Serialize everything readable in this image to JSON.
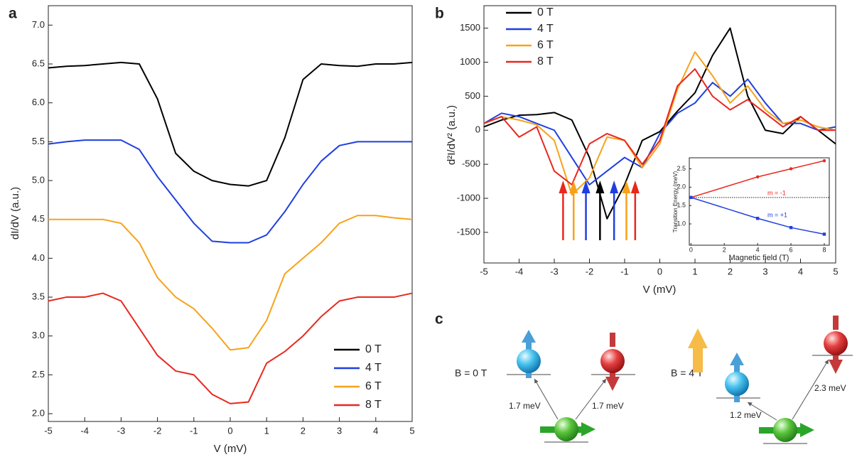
{
  "chart_data": [
    {
      "type": "line",
      "label": "a",
      "x_label": "V (mV)",
      "y_label": "dI/dV (a.u.)",
      "x": [
        -5,
        -4.5,
        -4,
        -3.5,
        -3,
        -2.5,
        -2,
        -1.5,
        -1,
        -0.5,
        0,
        0.5,
        1,
        1.5,
        2,
        2.5,
        3,
        3.5,
        4,
        4.5,
        5
      ],
      "series": [
        {
          "name": "0 T",
          "color": "#000000",
          "values": [
            6.45,
            6.47,
            6.48,
            6.5,
            6.52,
            6.5,
            6.05,
            5.35,
            5.12,
            5.0,
            4.95,
            4.93,
            5.0,
            5.55,
            6.3,
            6.5,
            6.48,
            6.47,
            6.5,
            6.5,
            6.52
          ]
        },
        {
          "name": "4 T",
          "color": "#1f3fe0",
          "values": [
            5.47,
            5.5,
            5.52,
            5.52,
            5.52,
            5.4,
            5.05,
            4.75,
            4.45,
            4.22,
            4.2,
            4.2,
            4.3,
            4.6,
            4.95,
            5.25,
            5.45,
            5.5,
            5.5,
            5.5,
            5.5
          ]
        },
        {
          "name": "6 T",
          "color": "#f7a21b",
          "values": [
            4.5,
            4.5,
            4.5,
            4.5,
            4.45,
            4.2,
            3.75,
            3.5,
            3.35,
            3.1,
            2.82,
            2.85,
            3.2,
            3.8,
            4.0,
            4.2,
            4.45,
            4.55,
            4.55,
            4.52,
            4.5
          ]
        },
        {
          "name": "8 T",
          "color": "#e8281e",
          "values": [
            3.45,
            3.5,
            3.5,
            3.55,
            3.45,
            3.1,
            2.75,
            2.55,
            2.5,
            2.25,
            2.13,
            2.15,
            2.65,
            2.8,
            3.0,
            3.25,
            3.45,
            3.5,
            3.5,
            3.5,
            3.55
          ]
        }
      ],
      "xlim": [
        -5,
        5
      ],
      "xticks": [
        -5,
        -4,
        -3,
        -2,
        -1,
        0,
        1,
        2,
        3,
        4,
        5
      ],
      "ylim": [
        1.9,
        7.25
      ],
      "yticks": [
        {
          "value": 2,
          "label": "2.0"
        },
        2.5,
        {
          "value": 3,
          "label": "3.0"
        },
        3.5,
        {
          "value": 4,
          "label": "4.0"
        },
        4.5,
        {
          "value": 5,
          "label": "5.0"
        },
        5.5,
        {
          "value": 6,
          "label": "6.0"
        },
        6.5,
        {
          "value": 7,
          "label": "7.0"
        }
      ],
      "legend": "lower right"
    },
    {
      "type": "line",
      "label": "b",
      "x_label": "V (mV)",
      "y_label": "d²I/dV² (a.u.)",
      "x": [
        -5,
        -4.5,
        -4,
        -3.5,
        -3,
        -2.5,
        -2,
        -1.5,
        -1,
        -0.5,
        0,
        0.5,
        1,
        1.5,
        2,
        2.5,
        3,
        3.5,
        4,
        4.5,
        5
      ],
      "series": [
        {
          "name": "0 T",
          "color": "#000000",
          "values": [
            50,
            150,
            220,
            230,
            260,
            150,
            -400,
            -1300,
            -800,
            -150,
            -20,
            280,
            550,
            1100,
            1500,
            500,
            0,
            -50,
            200,
            0,
            -200
          ]
        },
        {
          "name": "4 T",
          "color": "#1f3fe0",
          "values": [
            100,
            250,
            200,
            100,
            0,
            -400,
            -800,
            -600,
            -400,
            -550,
            -50,
            250,
            400,
            700,
            500,
            750,
            400,
            100,
            100,
            0,
            50
          ]
        },
        {
          "name": "6 T",
          "color": "#f7a21b",
          "values": [
            100,
            200,
            150,
            80,
            -150,
            -950,
            -700,
            -100,
            -150,
            -550,
            -200,
            600,
            1150,
            800,
            400,
            650,
            300,
            100,
            150,
            50,
            0
          ]
        },
        {
          "name": "8 T",
          "color": "#e8281e",
          "values": [
            100,
            200,
            -100,
            50,
            -600,
            -800,
            -200,
            -50,
            -150,
            -500,
            -150,
            650,
            900,
            500,
            300,
            450,
            250,
            50,
            200,
            0,
            0
          ]
        }
      ],
      "arrows": [
        {
          "x": -2.75,
          "color": "#e8281e"
        },
        {
          "x": -2.45,
          "color": "#f7a21b"
        },
        {
          "x": -2.1,
          "color": "#1f3fe0"
        },
        {
          "x": -1.7,
          "color": "#000000"
        },
        {
          "x": -1.3,
          "color": "#1f3fe0"
        },
        {
          "x": -0.95,
          "color": "#f7a21b"
        },
        {
          "x": -0.7,
          "color": "#e8281e"
        }
      ],
      "xlim": [
        -5,
        5
      ],
      "xticks": [
        -5,
        -4,
        -3,
        -2,
        -1,
        0,
        1,
        2,
        3,
        4,
        5
      ],
      "ylim": [
        -1950,
        1830
      ],
      "yticks": [
        -1500,
        -1000,
        -500,
        0,
        500,
        1000,
        1500
      ],
      "legend": "upper left"
    },
    {
      "type": "line",
      "x_label": "Magnetic field (T)",
      "y_label": "Transition Energy (meV)",
      "x": [
        0,
        4,
        6,
        8
      ],
      "series": [
        {
          "name": "m = -1",
          "color": "#e8281e",
          "values": [
            1.72,
            2.28,
            2.5,
            2.72
          ]
        },
        {
          "name": "m = +1",
          "color": "#1f3fe0",
          "values": [
            1.72,
            1.15,
            0.9,
            0.72
          ]
        }
      ],
      "hline": 1.72,
      "xlim": [
        -0.1,
        8.3
      ],
      "xticks": [
        0,
        2,
        4,
        6,
        8
      ],
      "ylim": [
        0.42,
        2.8
      ],
      "yticks": [
        {
          "value": 1,
          "label": "1.0"
        },
        1.5,
        {
          "value": 2,
          "label": "2.0"
        },
        2.5
      ]
    }
  ],
  "diagram": {
    "label": "c",
    "left": {
      "field": "B = 0 T",
      "energies": [
        "1.7 meV",
        "1.7 meV"
      ]
    },
    "right": {
      "field": "B = 4 T",
      "energies": [
        "1.2 meV",
        "2.3 meV"
      ]
    }
  }
}
